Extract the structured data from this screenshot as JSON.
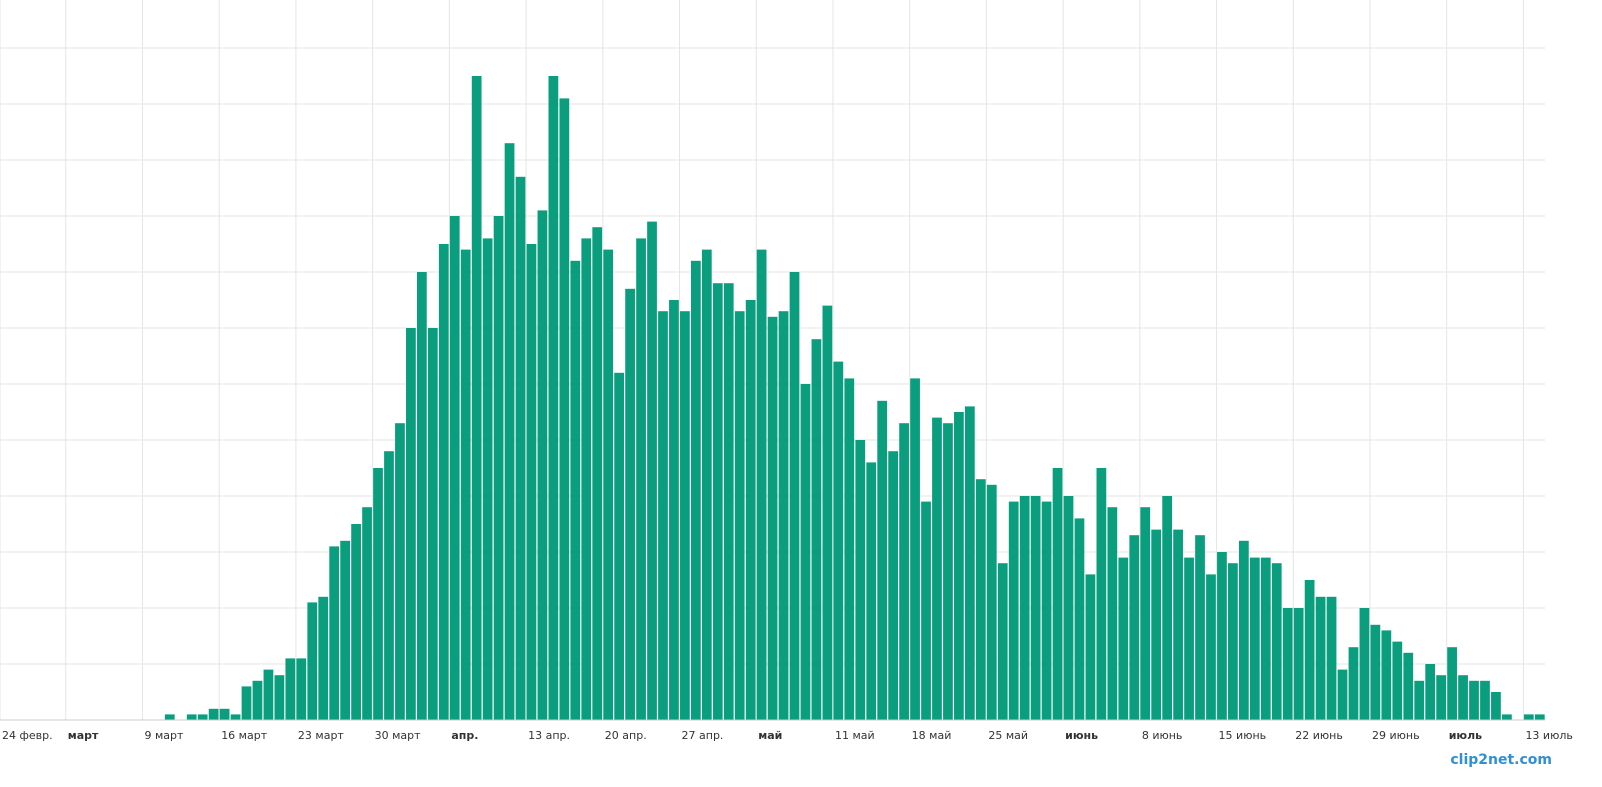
{
  "chart_data": {
    "type": "bar",
    "categories": [
      "24 февр.",
      null,
      null,
      null,
      null,
      null,
      "март",
      null,
      null,
      null,
      null,
      null,
      null,
      "9 март",
      null,
      null,
      null,
      null,
      null,
      null,
      "16 март",
      null,
      null,
      null,
      null,
      null,
      null,
      "23 март",
      null,
      null,
      null,
      null,
      null,
      null,
      "30 март",
      null,
      null,
      null,
      null,
      null,
      null,
      "апр.",
      null,
      null,
      null,
      null,
      null,
      null,
      "13 апр.",
      null,
      null,
      null,
      null,
      null,
      null,
      "20 апр.",
      null,
      null,
      null,
      null,
      null,
      null,
      "27 апр.",
      null,
      null,
      null,
      null,
      null,
      null,
      "май",
      null,
      null,
      null,
      null,
      null,
      null,
      "11 май",
      null,
      null,
      null,
      null,
      null,
      null,
      "18 май",
      null,
      null,
      null,
      null,
      null,
      null,
      "25 май",
      null,
      null,
      null,
      null,
      null,
      null,
      "июнь",
      null,
      null,
      null,
      null,
      null,
      null,
      "8 июнь",
      null,
      null,
      null,
      null,
      null,
      null,
      "15 июнь",
      null,
      null,
      null,
      null,
      null,
      null,
      "22 июнь",
      null,
      null,
      null,
      null,
      null,
      null,
      "29 июнь",
      null,
      null,
      null,
      null,
      null,
      null,
      "июль",
      null,
      null,
      null,
      null,
      null,
      null,
      "13 июль",
      null
    ],
    "values": [
      0,
      0,
      0,
      0,
      0,
      0,
      0,
      0,
      0,
      0,
      0,
      0,
      0,
      0,
      0,
      1,
      0,
      1,
      1,
      2,
      2,
      1,
      6,
      7,
      9,
      8,
      11,
      11,
      21,
      22,
      31,
      32,
      35,
      38,
      45,
      48,
      53,
      70,
      80,
      70,
      85,
      90,
      84,
      115,
      86,
      90,
      103,
      97,
      85,
      91,
      115,
      111,
      82,
      86,
      88,
      84,
      62,
      77,
      86,
      89,
      73,
      75,
      73,
      82,
      84,
      78,
      78,
      73,
      75,
      84,
      72,
      73,
      80,
      60,
      68,
      74,
      64,
      61,
      50,
      46,
      57,
      48,
      53,
      61,
      39,
      54,
      53,
      55,
      56,
      43,
      42,
      28,
      39,
      40,
      40,
      39,
      45,
      40,
      36,
      26,
      45,
      38,
      29,
      33,
      38,
      34,
      40,
      34,
      29,
      33,
      26,
      30,
      28,
      32,
      29,
      29,
      28,
      20,
      20,
      25,
      22,
      22,
      9,
      13,
      20,
      17,
      16,
      14,
      12,
      7,
      10,
      8,
      13,
      8,
      7,
      7,
      5,
      1,
      0,
      1,
      1
    ],
    "color": "#0b9e7e",
    "ylim": [
      0,
      128
    ],
    "yticks": [
      0,
      10,
      20,
      30,
      40,
      50,
      60,
      70,
      80,
      90,
      100,
      110,
      120
    ],
    "grid": true,
    "watermark": "clip2net.com"
  }
}
